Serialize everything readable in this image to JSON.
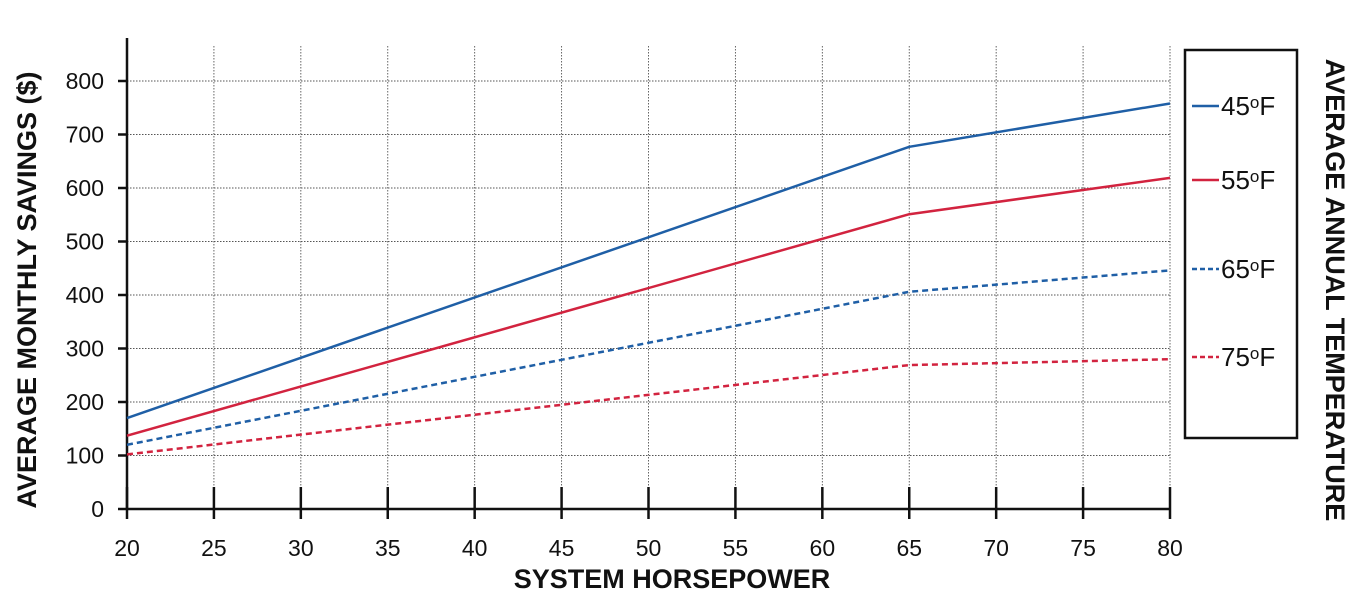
{
  "chart_data": {
    "type": "line",
    "title": "",
    "xlabel": "SYSTEM HORSEPOWER",
    "ylabel": "AVERAGE MONTHLY SAVINGS ($)",
    "right_label": "AVERAGE ANNUAL TEMPERATURE",
    "xlim": [
      20,
      80
    ],
    "ylim": [
      0,
      900
    ],
    "x_ticks": [
      20,
      25,
      30,
      35,
      40,
      45,
      50,
      55,
      60,
      65,
      70,
      75,
      80
    ],
    "y_ticks": [
      0,
      100,
      200,
      300,
      400,
      500,
      600,
      700,
      800
    ],
    "grid": true,
    "legend_position": "right",
    "x": [
      20,
      65,
      80
    ],
    "series": [
      {
        "name": "45",
        "unit_sup": "o",
        "unit": "F",
        "values": [
          170,
          677,
          758
        ],
        "color": "#1f5fa6",
        "dashed": false
      },
      {
        "name": "55",
        "unit_sup": "o",
        "unit": "F",
        "values": [
          137,
          551,
          619
        ],
        "color": "#d2233f",
        "dashed": false
      },
      {
        "name": "65",
        "unit_sup": "o",
        "unit": "F",
        "values": [
          120,
          406,
          446
        ],
        "color": "#1f5fa6",
        "dashed": true
      },
      {
        "name": "75",
        "unit_sup": "o",
        "unit": "F",
        "values": [
          102,
          269,
          280
        ],
        "color": "#d2233f",
        "dashed": true
      }
    ]
  }
}
